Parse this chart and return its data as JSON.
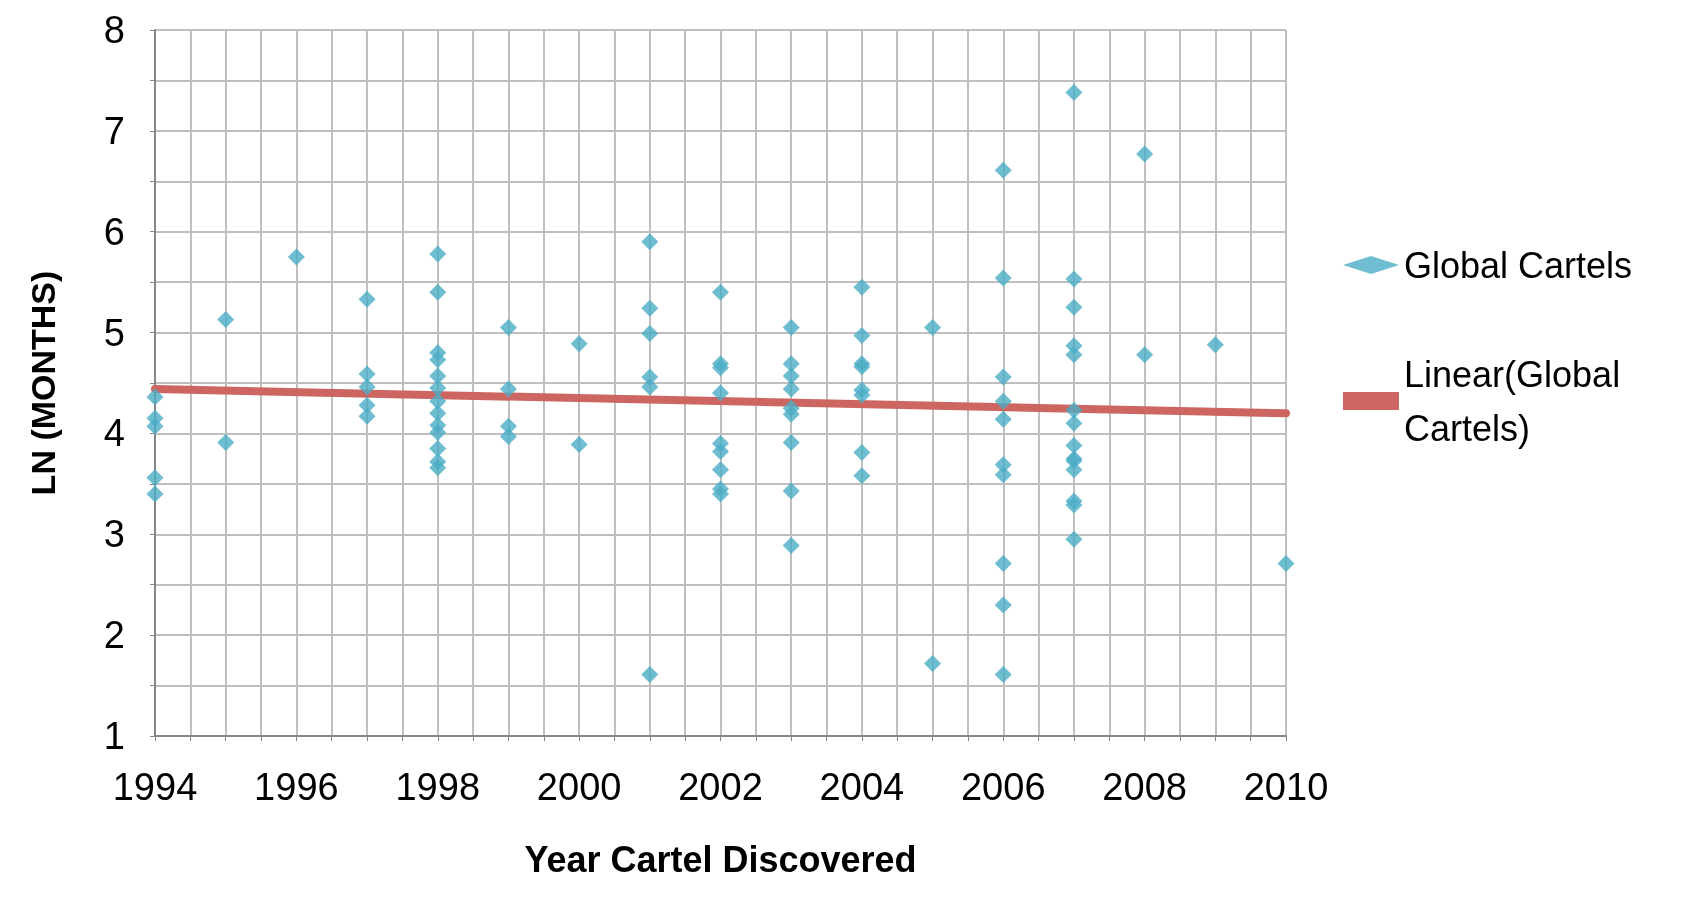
{
  "chart_data": {
    "type": "scatter",
    "xlabel": "Year Cartel Discovered",
    "ylabel": "LN (MONTHS)",
    "xlim": [
      1994,
      2010
    ],
    "ylim": [
      1,
      8
    ],
    "xticks": [
      1994,
      {
        "value": 1994.5,
        "label": null
      },
      {
        "value": 1995,
        "label": null
      },
      {
        "value": 1995.5,
        "label": null
      },
      1996,
      {
        "value": 1996.5,
        "label": null
      },
      {
        "value": 1997,
        "label": null
      },
      {
        "value": 1997.5,
        "label": null
      },
      1998,
      {
        "value": 1998.5,
        "label": null
      },
      {
        "value": 1999,
        "label": null
      },
      {
        "value": 1999.5,
        "label": null
      },
      2000,
      {
        "value": 2000.5,
        "label": null
      },
      {
        "value": 2001,
        "label": null
      },
      {
        "value": 2001.5,
        "label": null
      },
      2002,
      {
        "value": 2002.5,
        "label": null
      },
      {
        "value": 2003,
        "label": null
      },
      {
        "value": 2003.5,
        "label": null
      },
      2004,
      {
        "value": 2004.5,
        "label": null
      },
      {
        "value": 2005,
        "label": null
      },
      {
        "value": 2005.5,
        "label": null
      },
      2006,
      {
        "value": 2006.5,
        "label": null
      },
      {
        "value": 2007,
        "label": null
      },
      {
        "value": 2007.5,
        "label": null
      },
      2008,
      {
        "value": 2008.5,
        "label": null
      },
      {
        "value": 2009,
        "label": null
      },
      {
        "value": 2009.5,
        "label": null
      },
      2010
    ],
    "yticks": [
      1,
      {
        "value": 1.5,
        "label": null
      },
      2,
      {
        "value": 2.5,
        "label": null
      },
      3,
      {
        "value": 3.5,
        "label": null
      },
      4,
      {
        "value": 4.5,
        "label": null
      },
      5,
      {
        "value": 5.5,
        "label": null
      },
      6,
      {
        "value": 6.5,
        "label": null
      },
      7,
      {
        "value": 7.5,
        "label": null
      },
      8
    ],
    "grid": true,
    "legend": "right",
    "series": [
      {
        "name": "Global Cartels",
        "type": "scatter",
        "marker": "diamond",
        "color": "#4bacc6",
        "x": [
          1994,
          1994,
          1994,
          1994,
          1994,
          1995,
          1995,
          1996,
          1997,
          1997,
          1997,
          1997,
          1997,
          1998,
          1998,
          1998,
          1998,
          1998,
          1998,
          1998,
          1998,
          1998,
          1998,
          1998,
          1998,
          1998,
          1999,
          1999,
          1999,
          1999,
          2000,
          2000,
          2001,
          2001,
          2001,
          2001,
          2001,
          2001,
          2002,
          2002,
          2002,
          2002,
          2002,
          2002,
          2002,
          2002,
          2002,
          2003,
          2003,
          2003,
          2003,
          2003,
          2003,
          2003,
          2003,
          2003,
          2004,
          2004,
          2004,
          2004,
          2004,
          2004,
          2004,
          2004,
          2005,
          2005,
          2006,
          2006,
          2006,
          2006,
          2006,
          2006,
          2006,
          2006,
          2006,
          2006,
          2007,
          2007,
          2007,
          2007,
          2007,
          2007,
          2007,
          2007,
          2007,
          2007,
          2007,
          2007,
          2007,
          2007,
          2008,
          2008,
          2009,
          2010
        ],
        "values": [
          4.36,
          4.15,
          4.07,
          3.56,
          3.4,
          5.13,
          3.91,
          5.75,
          5.33,
          4.59,
          4.46,
          4.28,
          4.17,
          5.78,
          5.4,
          4.8,
          4.73,
          4.57,
          4.45,
          4.32,
          4.2,
          4.08,
          4.01,
          3.85,
          3.72,
          3.66,
          5.05,
          4.44,
          4.07,
          3.97,
          4.89,
          3.89,
          5.9,
          5.24,
          4.99,
          4.56,
          4.46,
          1.61,
          5.4,
          4.69,
          4.65,
          4.4,
          3.9,
          3.82,
          3.64,
          3.45,
          3.4,
          5.05,
          4.69,
          4.57,
          4.44,
          4.25,
          4.19,
          3.91,
          3.43,
          2.89,
          5.45,
          4.97,
          4.69,
          4.66,
          4.43,
          4.38,
          3.81,
          3.58,
          5.05,
          1.72,
          6.61,
          5.54,
          4.56,
          4.32,
          4.14,
          3.69,
          3.59,
          2.71,
          2.3,
          1.61,
          7.38,
          5.53,
          5.25,
          4.87,
          4.78,
          4.23,
          4.1,
          3.88,
          3.75,
          3.73,
          3.64,
          3.33,
          3.29,
          2.95,
          6.77,
          4.78,
          4.88,
          2.71
        ]
      },
      {
        "name": "Linear(Global Cartels)",
        "type": "line",
        "marker": "none",
        "color": "#cd6660",
        "x": [
          1994,
          2010
        ],
        "values": [
          4.44,
          4.2
        ]
      }
    ]
  }
}
